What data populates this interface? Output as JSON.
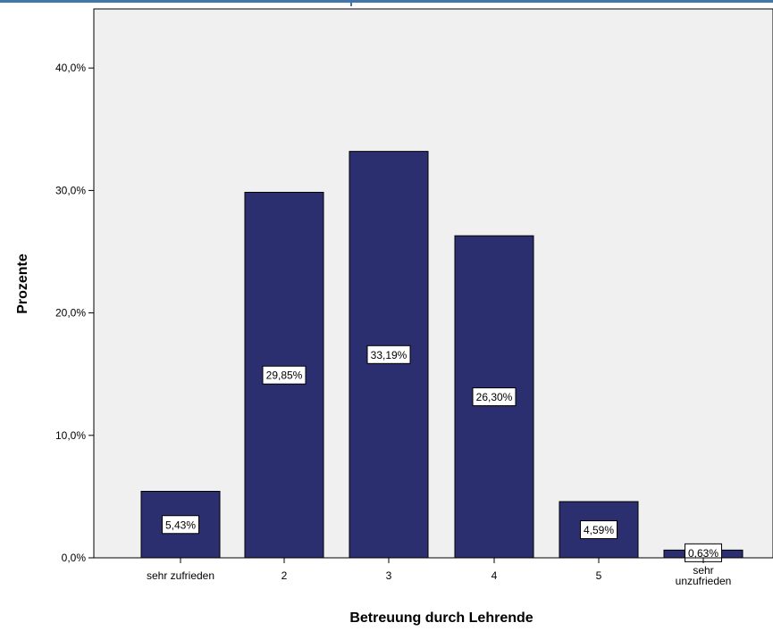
{
  "chart_data": {
    "type": "bar",
    "title": "",
    "xlabel": "Betreuung durch Lehrende",
    "ylabel": "Prozente",
    "categories": [
      "sehr zufrieden",
      "2",
      "3",
      "4",
      "5",
      "sehr unzufrieden"
    ],
    "values": [
      5.43,
      29.85,
      33.19,
      26.3,
      4.59,
      0.63
    ],
    "data_labels": [
      "5,43%",
      "29,85%",
      "33,19%",
      "26,30%",
      "4,59%",
      "0,63%"
    ],
    "ylim": [
      0,
      45
    ],
    "yticks": [
      0,
      10,
      20,
      30,
      40
    ],
    "ytick_labels": [
      "0,0%",
      "10,0%",
      "20,0%",
      "30,0%",
      "40,0%"
    ],
    "grid": false,
    "colors": {
      "bar": "#2b2e6f",
      "plot_background": "#f0f0f0",
      "accent_line": "#3f77ad"
    }
  }
}
